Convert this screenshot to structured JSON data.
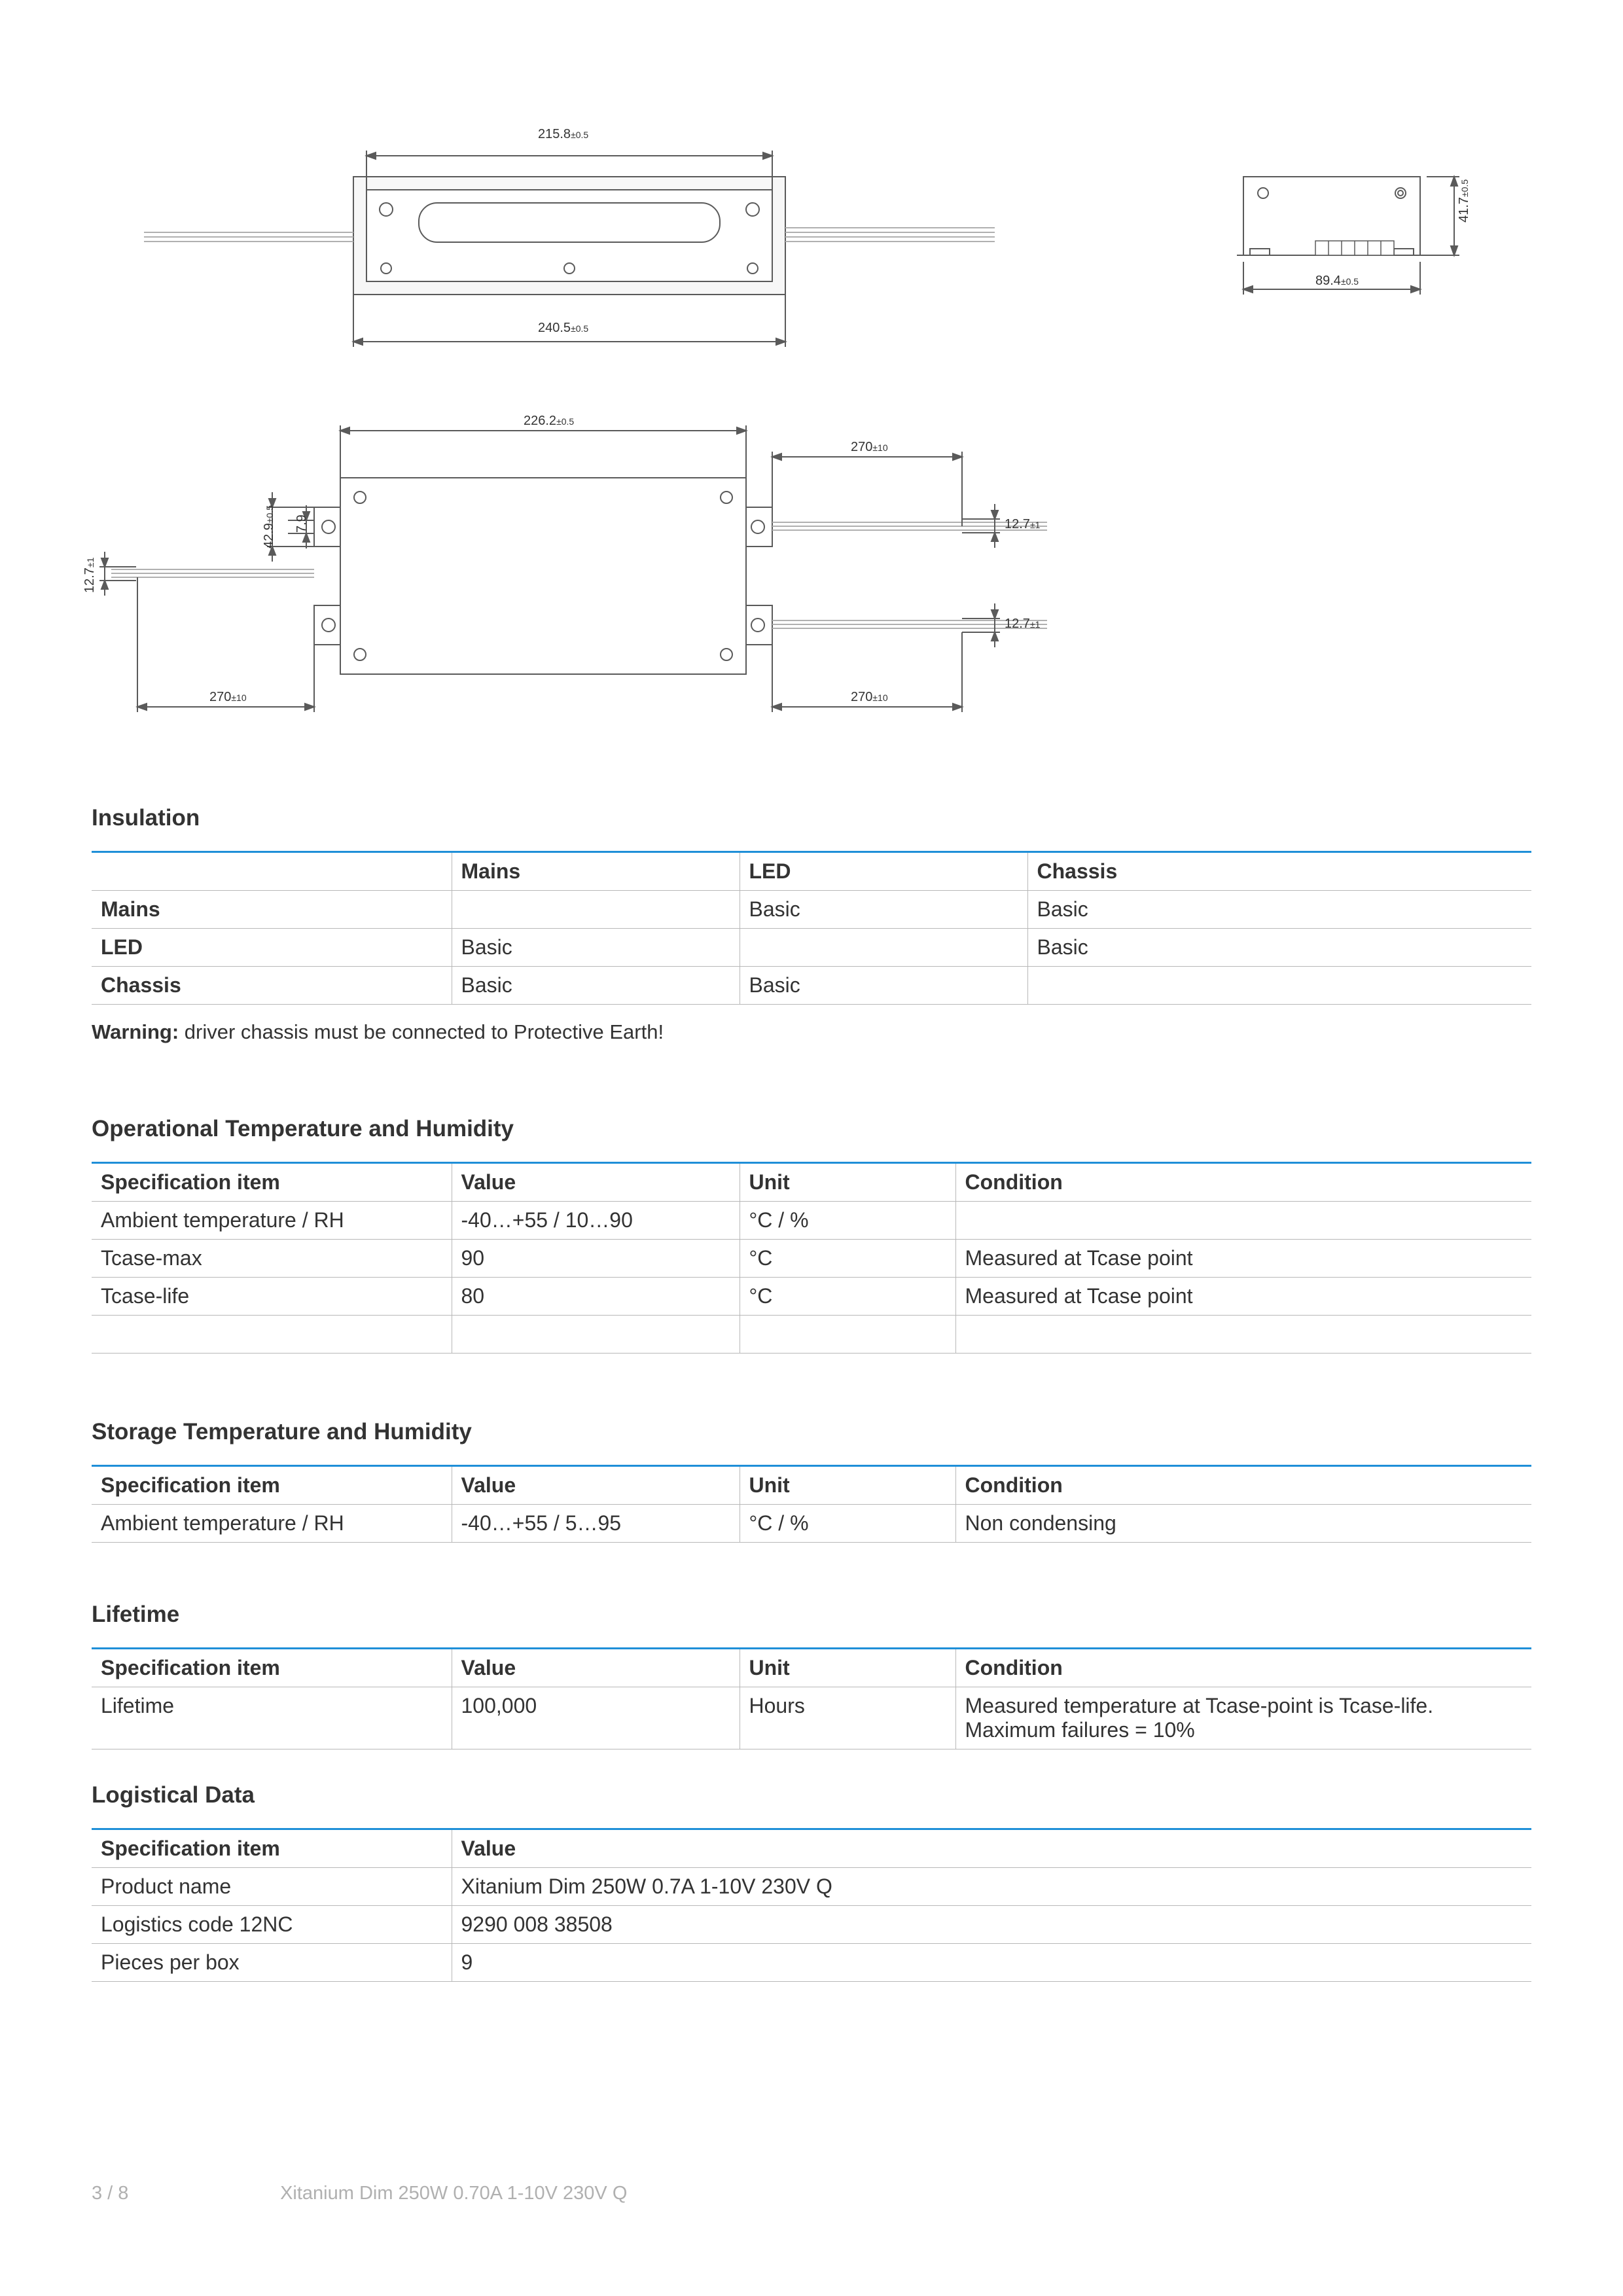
{
  "diagrams": {
    "top": {
      "dims": {
        "w": "215.8",
        "w_tol": "±0.5",
        "w2": "240.5",
        "w2_tol": "±0.5"
      }
    },
    "side": {
      "dims": {
        "w": "89.4",
        "w_tol": "±0.5",
        "h": "41.7",
        "h_tol": "±0.5"
      }
    },
    "bottom": {
      "dims": {
        "w_top": "226.2",
        "w_top_tol": "±0.5",
        "ext_r_top": "270",
        "ext_r_top_tol": "±10",
        "ext_r_t_off": "12.7",
        "ext_r_t_off_tol": "±1",
        "ext_r_b_off": "12.7",
        "ext_r_b_off_tol": "±1",
        "ext_r_bot": "270",
        "ext_r_bot_tol": "±10",
        "ext_l": "270",
        "ext_l_tol": "±10",
        "ext_l_off": "12.7",
        "ext_l_off_tol": "±1",
        "h_inner": "7.9",
        "h_outer": "42.9",
        "h_outer_tol": "±0.5"
      }
    },
    "line_color": "#5a5a5a",
    "line_light": "#b0b0b0"
  },
  "insulation": {
    "title": "Insulation",
    "col_widths": [
      "25%",
      "20%",
      "20%",
      "35%"
    ],
    "columns": [
      "",
      "Mains",
      "LED",
      "Chassis"
    ],
    "rows": [
      [
        "Mains",
        "",
        "Basic",
        "Basic"
      ],
      [
        "LED",
        "Basic",
        "",
        "Basic"
      ],
      [
        "Chassis",
        "Basic",
        "Basic",
        ""
      ]
    ],
    "warning_bold": "Warning:",
    "warning_rest": " driver chassis must be connected to Protective Earth!"
  },
  "op_temp": {
    "title": "Operational Temperature and Humidity",
    "col_widths": [
      "25%",
      "20%",
      "15%",
      "40%"
    ],
    "columns": [
      "Specification item",
      "Value",
      "Unit",
      "Condition"
    ],
    "rows": [
      [
        "Ambient temperature / RH",
        "-40…+55 / 10…90",
        "°C / %",
        ""
      ],
      [
        "Tcase-max",
        "90",
        "°C",
        "Measured at Tcase point"
      ],
      [
        "Tcase-life",
        "80",
        "°C",
        "Measured at Tcase point"
      ],
      [
        "",
        "",
        "",
        ""
      ]
    ]
  },
  "storage": {
    "title": "Storage Temperature and Humidity",
    "col_widths": [
      "25%",
      "20%",
      "15%",
      "40%"
    ],
    "columns": [
      "Specification item",
      "Value",
      "Unit",
      "Condition"
    ],
    "rows": [
      [
        "Ambient temperature / RH",
        "-40…+55 / 5…95",
        "°C / %",
        "Non condensing"
      ]
    ]
  },
  "lifetime": {
    "title": "Lifetime",
    "col_widths": [
      "25%",
      "20%",
      "15%",
      "40%"
    ],
    "columns": [
      "Specification item",
      "Value",
      "Unit",
      "Condition"
    ],
    "rows": [
      [
        "Lifetime",
        "100,000",
        "Hours",
        "Measured temperature at Tcase-point is Tcase-life. Maximum failures = 10%"
      ]
    ]
  },
  "logistical": {
    "title": "Logistical Data",
    "col_widths": [
      "25%",
      "75%"
    ],
    "columns": [
      "Specification item",
      "Value"
    ],
    "rows": [
      [
        "Product name",
        "Xitanium Dim 250W 0.7A 1-10V  230V Q"
      ],
      [
        "Logistics code 12NC",
        "9290 008 38508"
      ],
      [
        "Pieces per box",
        "9"
      ]
    ]
  },
  "footer": {
    "page": "3 / 8",
    "product": "Xitanium Dim 250W 0.70A 1-10V 230V Q"
  }
}
